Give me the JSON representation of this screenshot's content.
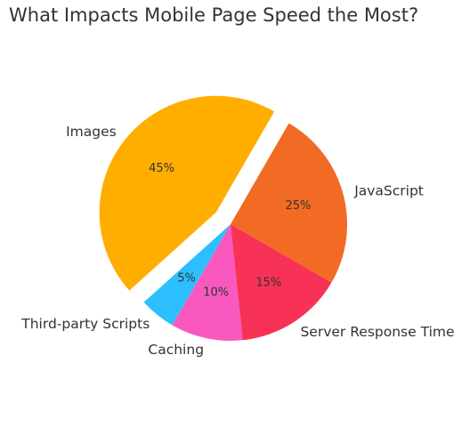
{
  "chart_data": {
    "type": "pie",
    "title": "What Impacts Mobile Page Speed the Most?",
    "slices": [
      {
        "label": "JavaScript",
        "value": 25,
        "pct_label": "25%",
        "color": "#F26B24",
        "exploded": false
      },
      {
        "label": "Images",
        "value": 45,
        "pct_label": "45%",
        "color": "#FFAE00",
        "exploded": true
      },
      {
        "label": "Third-party Scripts",
        "value": 5,
        "pct_label": "5%",
        "color": "#2BC0FD",
        "exploded": false
      },
      {
        "label": "Caching",
        "value": 10,
        "pct_label": "10%",
        "color": "#F959BE",
        "exploded": false
      },
      {
        "label": "Server Response Time",
        "value": 15,
        "pct_label": "15%",
        "color": "#F73256",
        "exploded": false
      }
    ]
  }
}
